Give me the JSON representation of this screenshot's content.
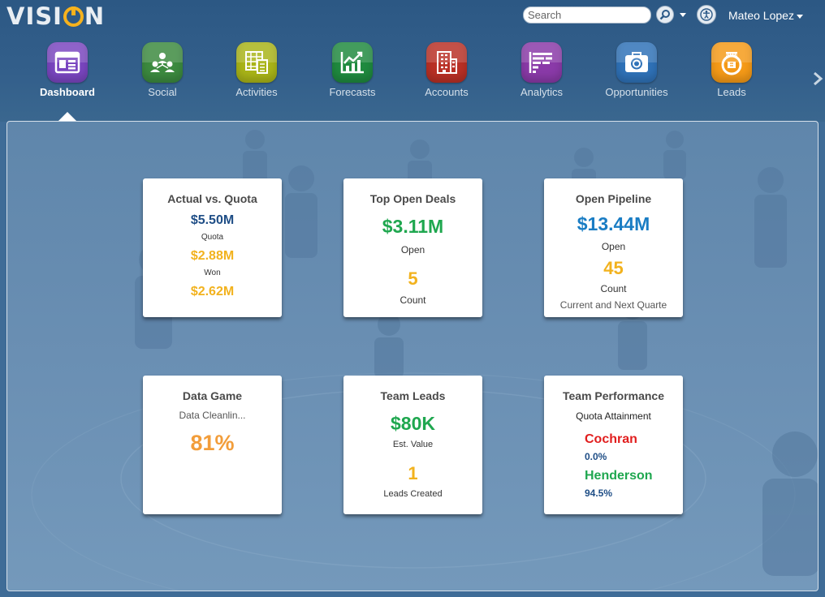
{
  "app": {
    "logo_text_left": "VISI",
    "logo_text_right": "N"
  },
  "header": {
    "search_placeholder": "Search",
    "user_name": "Mateo Lopez"
  },
  "nav": {
    "items": [
      {
        "label": "Dashboard",
        "icon": "dashboard-icon",
        "color": "#7a46c0",
        "active": true
      },
      {
        "label": "Social",
        "icon": "social-icon",
        "color": "#3c8a3f"
      },
      {
        "label": "Activities",
        "icon": "activities-icon",
        "color": "#a9b418"
      },
      {
        "label": "Forecasts",
        "icon": "forecasts-icon",
        "color": "#1f8a3f"
      },
      {
        "label": "Accounts",
        "icon": "accounts-icon",
        "color": "#b93025"
      },
      {
        "label": "Analytics",
        "icon": "analytics-icon",
        "color": "#8a3aa8"
      },
      {
        "label": "Opportunities",
        "icon": "opportunities-icon",
        "color": "#2f72b8"
      },
      {
        "label": "Leads",
        "icon": "leads-icon",
        "color": "#f59a17"
      }
    ]
  },
  "tiles": {
    "actual_vs_quota": {
      "title": "Actual vs. Quota",
      "quota_value": "$5.50M",
      "quota_label": "Quota",
      "won_value": "$2.88M",
      "won_label": "Won",
      "third_value": "$2.62M"
    },
    "top_open_deals": {
      "title": "Top Open Deals",
      "open_value": "$3.11M",
      "open_label": "Open",
      "count_value": "5",
      "count_label": "Count"
    },
    "open_pipeline": {
      "title": "Open Pipeline",
      "open_value": "$13.44M",
      "open_label": "Open",
      "count_value": "45",
      "count_label": "Count",
      "period": "Current and Next Quarte"
    },
    "data_game": {
      "title": "Data Game",
      "subtitle": "Data Cleanlin...",
      "value": "81%"
    },
    "team_leads": {
      "title": "Team Leads",
      "value": "$80K",
      "value_label": "Est. Value",
      "count_value": "1",
      "count_label": "Leads Created"
    },
    "team_performance": {
      "title": "Team Performance",
      "subtitle": "Quota Attainment",
      "members": [
        {
          "name": "Cochran",
          "value": "0.0%",
          "color": "#e11e1e"
        },
        {
          "name": "Henderson",
          "value": "94.5%",
          "color": "#1fa74f"
        }
      ]
    }
  }
}
